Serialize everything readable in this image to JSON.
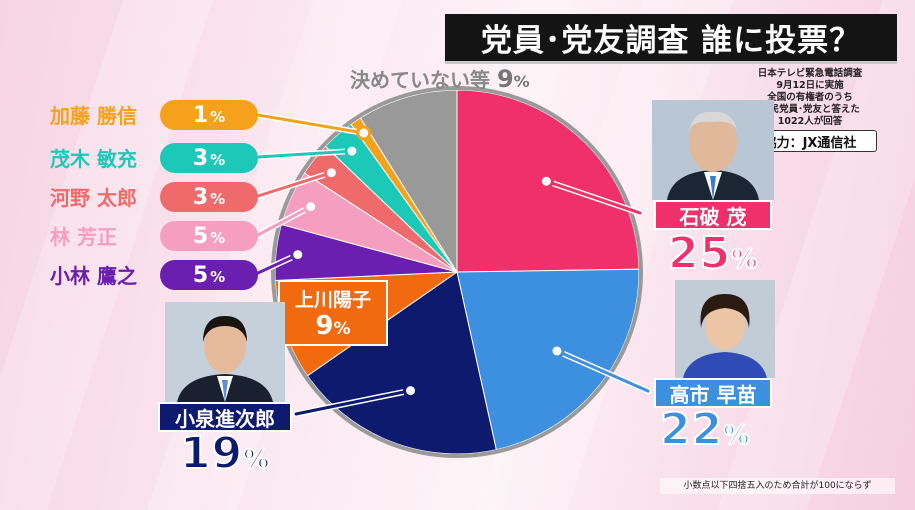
{
  "title": "党員･党友調査 誰に投票？",
  "info_lines": [
    "日本テレビ緊急電話調査",
    "9月12日に実施",
    "全国の有権者のうち",
    "自民党員･党友と答えた",
    "1022人が回答"
  ],
  "cooperation": "協力：JX通信社",
  "footnote": "小数点以下四捨五入のため合計が100にならず",
  "undecided": {
    "label": "決めていない等",
    "value": "9",
    "unit": "%"
  },
  "small_labels": [
    {
      "name": "加藤 勝信",
      "value": "1",
      "unit": "%",
      "color": "#f5a11c"
    },
    {
      "name": "茂木 敏充",
      "value": "3",
      "unit": "%",
      "color": "#1cc9b9"
    },
    {
      "name": "河野 太郎",
      "value": "3",
      "unit": "%",
      "color": "#ef6a6a"
    },
    {
      "name": "林 芳正",
      "value": "5",
      "unit": "%",
      "color": "#f59ec0"
    },
    {
      "name": "小林 鷹之",
      "value": "5",
      "unit": "%",
      "color": "#6a1fb0"
    }
  ],
  "big_labels": {
    "ishiba": {
      "name": "石破 茂",
      "value": "25",
      "unit": "%",
      "color": "#f0306a"
    },
    "takaichi": {
      "name": "高市 早苗",
      "value": "22",
      "unit": "%",
      "color": "#3d8fe0"
    },
    "koizumi": {
      "name": "小泉進次郎",
      "value": "19",
      "unit": "%",
      "color": "#0d1a6e"
    },
    "kamikawa": {
      "name": "上川陽子",
      "value": "9",
      "unit": "%",
      "color": "#f26a10"
    }
  },
  "chart_data": {
    "type": "pie",
    "title": "党員･党友調査 誰に投票？",
    "start": "12 o'clock, clockwise",
    "slices": [
      {
        "label": "石破 茂",
        "value": 25,
        "color": "#f0306a"
      },
      {
        "label": "高市 早苗",
        "value": 22,
        "color": "#3d8fe0"
      },
      {
        "label": "小泉進次郎",
        "value": 19,
        "color": "#0d1a6e"
      },
      {
        "label": "上川陽子",
        "value": 9,
        "color": "#f26a10"
      },
      {
        "label": "小林 鷹之",
        "value": 5,
        "color": "#6a1fb0"
      },
      {
        "label": "林 芳正",
        "value": 5,
        "color": "#f59ec0"
      },
      {
        "label": "河野 太郎",
        "value": 3,
        "color": "#ef6a6a"
      },
      {
        "label": "茂木 敏充",
        "value": 3,
        "color": "#1cc9b9"
      },
      {
        "label": "加藤 勝信",
        "value": 1,
        "color": "#f5a11c"
      },
      {
        "label": "決めていない等",
        "value": 9,
        "color": "#999999"
      }
    ]
  }
}
